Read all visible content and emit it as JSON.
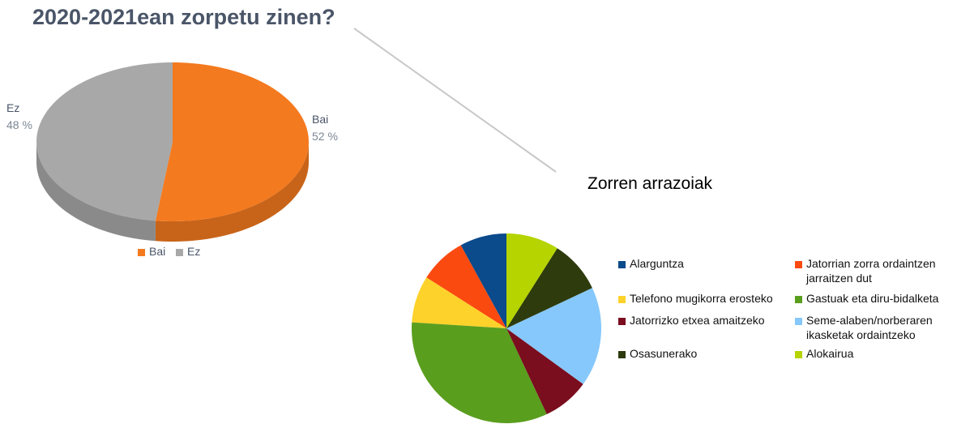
{
  "chart_data": [
    {
      "type": "pie",
      "3d": true,
      "title": "2020-2021ean zorpetu zinen?",
      "categories": [
        "Bai",
        "Ez"
      ],
      "values": [
        52,
        48
      ],
      "value_labels": [
        "52 %",
        "48 %"
      ],
      "colors": [
        "#f47a1f",
        "#a8a8a8"
      ],
      "legend": "bottom"
    },
    {
      "type": "pie",
      "3d": false,
      "title": "Zorren arrazoiak",
      "categories": [
        "Alarguntza",
        "Jatorrian zorra ordaintzen jarraitzen dut",
        "Telefono mugikorra erosteko",
        "Gastuak eta diru-bidalketa",
        "Jatorrizko etxea amaitzeko",
        "Seme-alaben/norberaren ikasketak ordaintzeko",
        "Osasunerako",
        "Alokairua"
      ],
      "values": [
        8,
        8,
        8,
        33,
        8,
        17,
        9,
        9
      ],
      "colors": [
        "#0b4a8b",
        "#fb4a10",
        "#fdd22a",
        "#5a9e1e",
        "#7a0d1e",
        "#86c8fb",
        "#2e3b0c",
        "#b5d400"
      ],
      "legend": "right"
    }
  ]
}
